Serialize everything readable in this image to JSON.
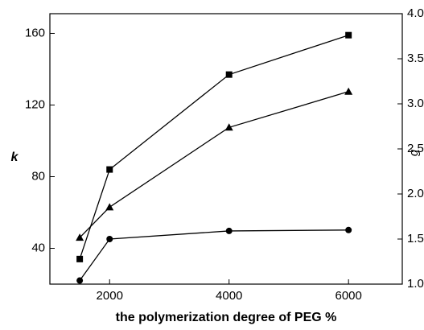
{
  "chart_data": {
    "type": "line",
    "x_label": "the polymerization degree of PEG %",
    "y_label": "k",
    "y2_label": "g",
    "x": [
      1500,
      2000,
      4000,
      6000
    ],
    "series": [
      {
        "marker": "square",
        "color": "#000000",
        "values": [
          34,
          84,
          137,
          159
        ]
      },
      {
        "marker": "triangle",
        "color": "#000000",
        "values": [
          46,
          63,
          107.5,
          127.5
        ]
      },
      {
        "marker": "circle",
        "color": "#000000",
        "axis": "y2",
        "values": [
          1.04,
          1.5,
          1.59,
          1.6
        ]
      }
    ],
    "xlim": [
      1000,
      6900
    ],
    "xticks": [
      2000,
      4000,
      6000
    ],
    "ylim": [
      20,
      171
    ],
    "yticks": [
      40,
      80,
      120,
      160
    ],
    "y2lim": [
      1.0,
      4.0
    ],
    "y2ticks": [
      {
        "value": 1.0,
        "label": "1.0"
      },
      1.5,
      {
        "value": 2.0,
        "label": "2.0"
      },
      2.5,
      {
        "value": 3.0,
        "label": "3.0"
      },
      3.5,
      {
        "value": 4.0,
        "label": "4.0"
      }
    ]
  }
}
